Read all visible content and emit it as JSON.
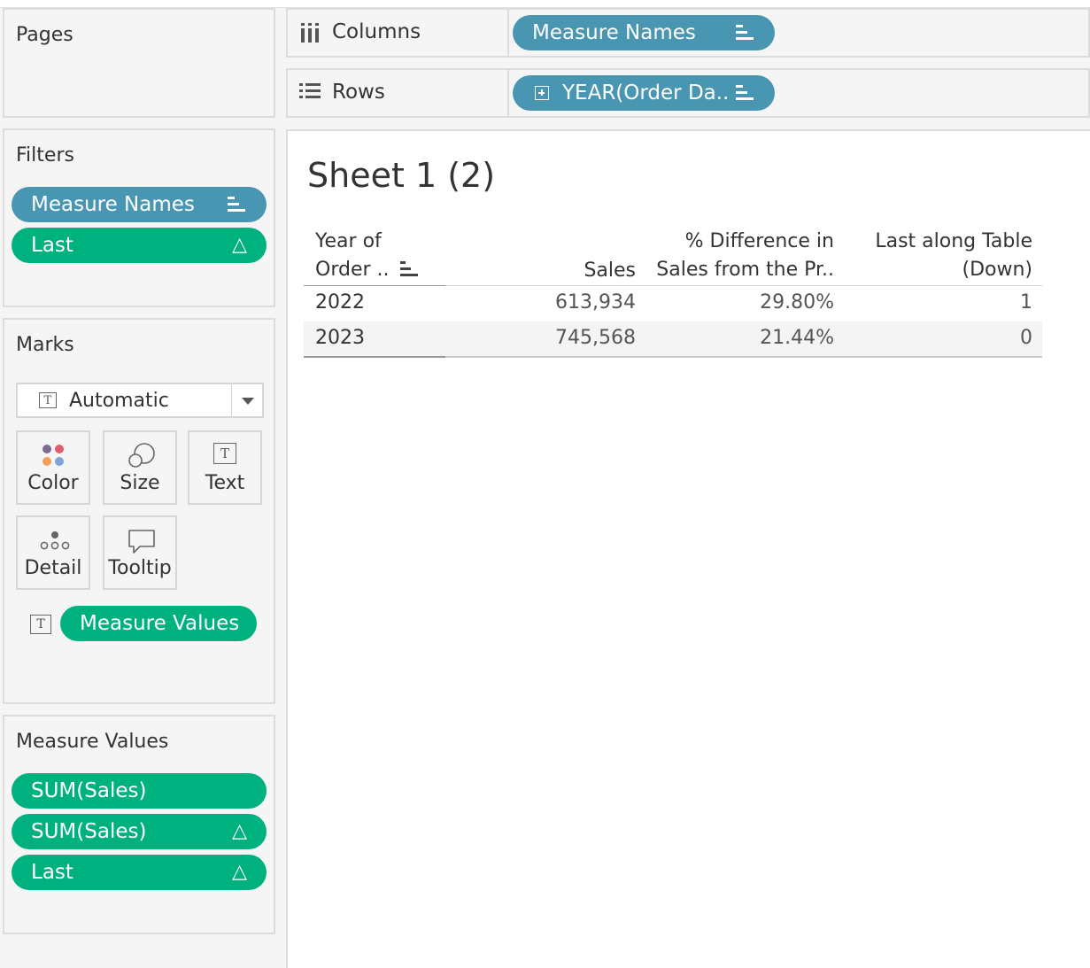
{
  "pages": {
    "title": "Pages"
  },
  "filters": {
    "title": "Filters",
    "pills": [
      {
        "label": "Measure Names",
        "color": "#4996b2",
        "icon": "sort-icon"
      },
      {
        "label": "Last",
        "color": "#00b180",
        "icon": "delta-icon"
      }
    ]
  },
  "marks": {
    "title": "Marks",
    "type_dropdown": "Automatic",
    "buttons": {
      "color": "Color",
      "size": "Size",
      "text": "Text",
      "detail": "Detail",
      "tooltip": "Tooltip"
    },
    "text_pill": "Measure Values"
  },
  "measure_values": {
    "title": "Measure Values",
    "pills": [
      "SUM(Sales)",
      "SUM(Sales)",
      "Last"
    ]
  },
  "shelves": {
    "columns_label": "Columns",
    "rows_label": "Rows",
    "columns_pill": "Measure Names",
    "rows_pill": "YEAR(Order Da.."
  },
  "sheet": {
    "title": "Sheet 1 (2)",
    "headers": {
      "year_line1": "Year of",
      "year_line2": "Order ..",
      "sales": "Sales",
      "diff_line1": "% Difference in",
      "diff_line2": "Sales from the Pr..",
      "last_line1": "Last along Table",
      "last_line2": "(Down)"
    },
    "rows": [
      {
        "year": "2022",
        "sales": "613,934",
        "diff": "29.80%",
        "last": "1"
      },
      {
        "year": "2023",
        "sales": "745,568",
        "diff": "21.44%",
        "last": "0"
      }
    ]
  },
  "colors": {
    "blue_pill": "#4996b2",
    "green_pill": "#00b180"
  }
}
